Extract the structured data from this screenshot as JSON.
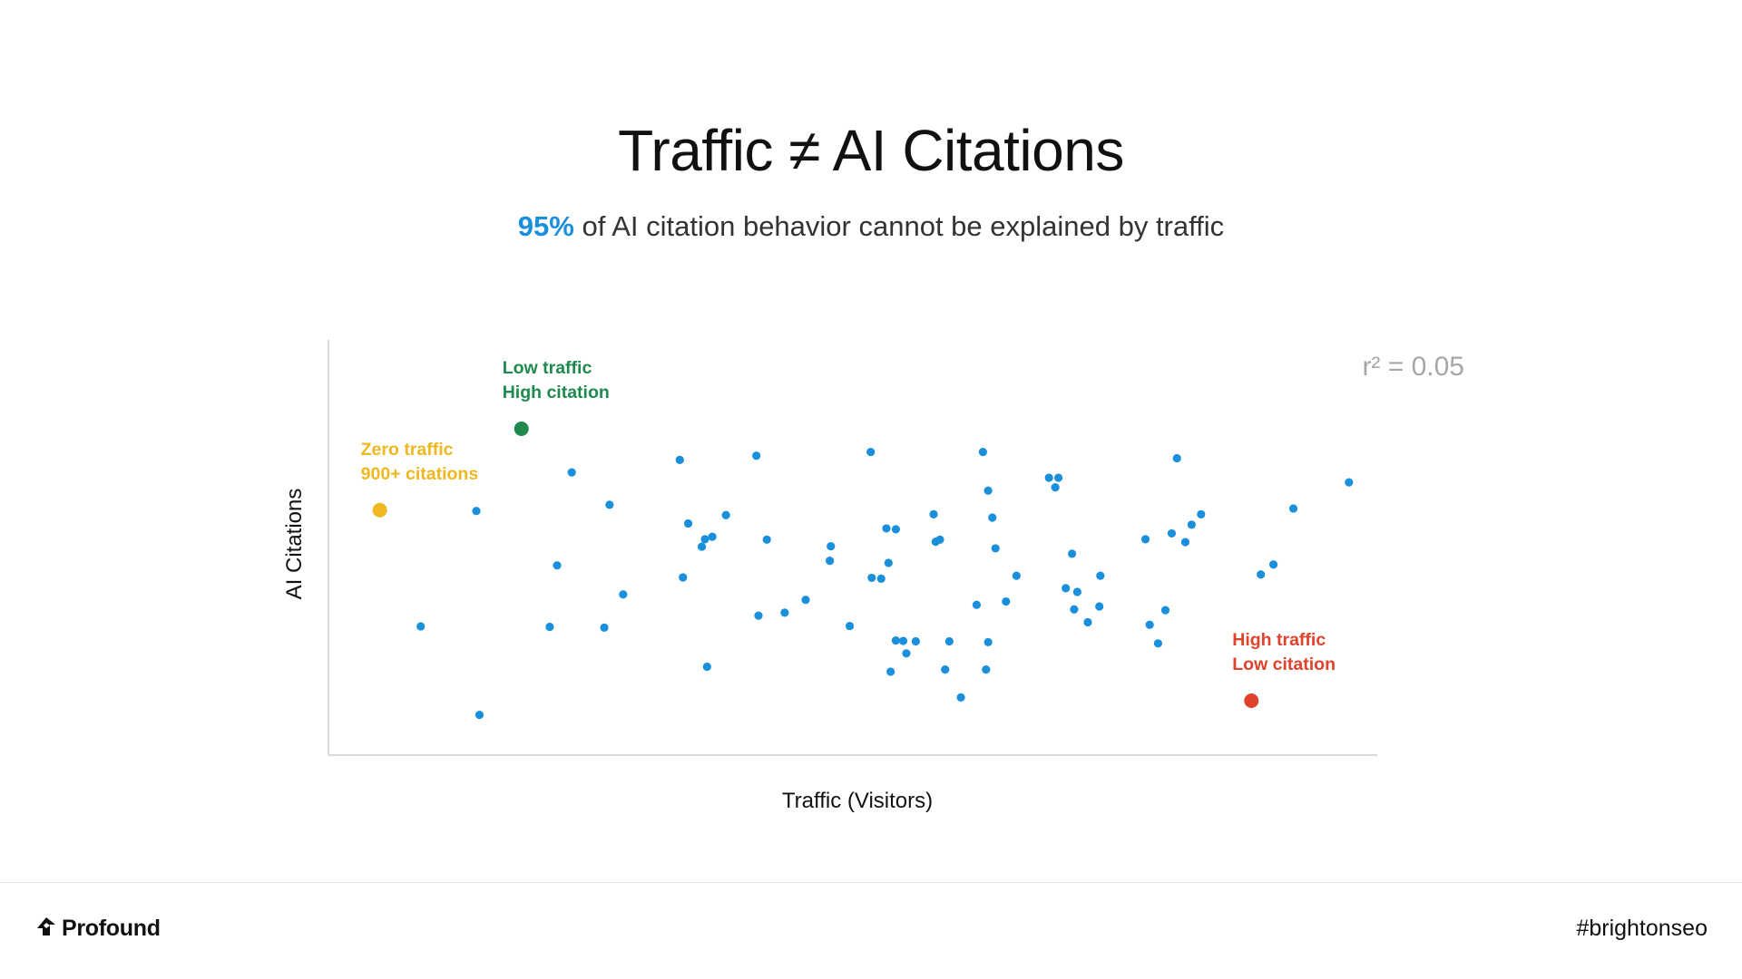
{
  "slide": {
    "title": "Traffic ≠ AI Citations",
    "subtitle_highlight": "95%",
    "subtitle_rest": " of AI citation behavior cannot be explained by traffic"
  },
  "footer": {
    "brand": "Profound",
    "logo_icon": "profound-logo-icon",
    "hashtag": "#brightonseo"
  },
  "colors": {
    "accent_blue": "#1a8fdc",
    "point_blue": "#1a8fdc",
    "zero_traffic": "#f0b820",
    "low_traffic_high_citation": "#1e8a4e",
    "high_traffic_low_citation": "#e0432b",
    "axis": "#d8d8d8",
    "r2_text": "#a6a6a6"
  },
  "chart_data": {
    "type": "scatter",
    "title": "",
    "xlabel": "Traffic (Visitors)",
    "ylabel": "AI Citations",
    "xlim": [
      0,
      100
    ],
    "ylim": [
      0,
      100
    ],
    "grid": false,
    "axis_ticks": false,
    "stat_label": "r² = 0.05",
    "series": [
      {
        "points": [
          [
            8.8,
            31.0
          ],
          [
            14.4,
            9.7
          ],
          [
            14.1,
            58.8
          ],
          [
            21.1,
            30.9
          ],
          [
            21.8,
            45.7
          ],
          [
            23.2,
            68.1
          ],
          [
            26.3,
            30.7
          ],
          [
            26.8,
            60.3
          ],
          [
            28.1,
            38.7
          ],
          [
            33.5,
            71.1
          ],
          [
            33.8,
            42.8
          ],
          [
            34.3,
            55.8
          ],
          [
            35.6,
            50.2
          ],
          [
            35.9,
            52.0
          ],
          [
            36.1,
            21.3
          ],
          [
            36.6,
            52.6
          ],
          [
            37.9,
            57.8
          ],
          [
            40.8,
            72.1
          ],
          [
            41.0,
            33.6
          ],
          [
            41.8,
            51.9
          ],
          [
            43.5,
            34.3
          ],
          [
            45.5,
            37.4
          ],
          [
            47.8,
            46.8
          ],
          [
            47.9,
            50.3
          ],
          [
            49.7,
            31.1
          ],
          [
            51.7,
            73.0
          ],
          [
            51.8,
            42.7
          ],
          [
            52.7,
            42.5
          ],
          [
            53.2,
            54.6
          ],
          [
            53.4,
            46.3
          ],
          [
            53.6,
            20.1
          ],
          [
            54.1,
            27.6
          ],
          [
            54.1,
            54.4
          ],
          [
            54.8,
            27.5
          ],
          [
            55.1,
            24.5
          ],
          [
            56.0,
            27.4
          ],
          [
            57.7,
            58.0
          ],
          [
            57.9,
            51.4
          ],
          [
            58.3,
            51.9
          ],
          [
            58.8,
            20.6
          ],
          [
            59.2,
            27.4
          ],
          [
            60.3,
            13.9
          ],
          [
            61.8,
            36.2
          ],
          [
            62.4,
            73.0
          ],
          [
            62.7,
            20.6
          ],
          [
            62.9,
            63.7
          ],
          [
            62.9,
            27.2
          ],
          [
            63.3,
            57.2
          ],
          [
            63.6,
            49.8
          ],
          [
            64.6,
            37.0
          ],
          [
            65.6,
            43.2
          ],
          [
            68.7,
            66.8
          ],
          [
            69.3,
            64.5
          ],
          [
            69.6,
            66.8
          ],
          [
            70.3,
            40.2
          ],
          [
            70.9,
            48.5
          ],
          [
            71.1,
            35.1
          ],
          [
            71.4,
            39.3
          ],
          [
            72.4,
            32.0
          ],
          [
            73.5,
            35.8
          ],
          [
            73.6,
            43.2
          ],
          [
            77.9,
            52.0
          ],
          [
            78.3,
            31.4
          ],
          [
            79.1,
            26.9
          ],
          [
            79.8,
            34.9
          ],
          [
            80.4,
            53.4
          ],
          [
            80.9,
            71.5
          ],
          [
            81.7,
            51.3
          ],
          [
            82.3,
            55.5
          ],
          [
            83.2,
            58.0
          ],
          [
            88.9,
            43.5
          ],
          [
            90.1,
            45.9
          ],
          [
            92.0,
            59.4
          ],
          [
            97.3,
            65.7
          ]
        ]
      }
    ],
    "highlights": [
      {
        "x": 4.9,
        "y": 59.0,
        "label_lines": [
          "Zero traffic",
          "900+ citations"
        ],
        "color": "#f0b820"
      },
      {
        "x": 18.4,
        "y": 78.6,
        "label_lines": [
          "Low traffic",
          "High citation"
        ],
        "color": "#1e8a4e"
      },
      {
        "x": 88.0,
        "y": 13.1,
        "label_lines": [
          "High traffic",
          "Low citation"
        ],
        "color": "#e0432b"
      }
    ]
  }
}
